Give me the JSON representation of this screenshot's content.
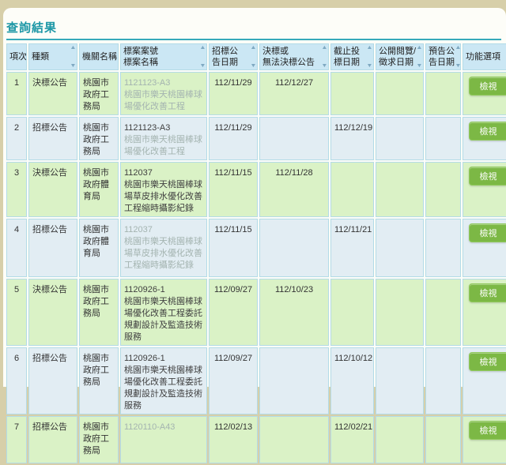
{
  "page": {
    "title": "查詢結果"
  },
  "labels": {
    "view": "檢視"
  },
  "icons": {
    "sort_asc": "▲",
    "sort_desc": "▼"
  },
  "colors": {
    "title_teal": "#1d97a6",
    "rule_teal": "#35a9ba",
    "header_bg": "#cbe7f4",
    "row_green": "#daf2c6",
    "row_blue": "#e2edf3",
    "border": "#b3dbe7",
    "button_green": "#7cb845",
    "dim_text": "#a4b4b0",
    "top_band": "#d7cfa9"
  },
  "table": {
    "headers": [
      {
        "id": "seq",
        "lines": [
          "項次"
        ],
        "sortable": false
      },
      {
        "id": "type",
        "lines": [
          "種類"
        ],
        "sortable": true
      },
      {
        "id": "agency",
        "lines": [
          "機關名稱"
        ],
        "sortable": true
      },
      {
        "id": "case",
        "lines": [
          "標案案號",
          "標案名稱"
        ],
        "sortable": true
      },
      {
        "id": "tender-date",
        "lines": [
          "招標公",
          "告日期"
        ],
        "sortable": true
      },
      {
        "id": "award-date",
        "lines": [
          "決標或",
          "無法決標公告"
        ],
        "sortable": true
      },
      {
        "id": "deadline",
        "lines": [
          "截止投",
          "標日期"
        ],
        "sortable": true
      },
      {
        "id": "review-date",
        "lines": [
          "公開閱覽/",
          "徵求日期"
        ],
        "sortable": true
      },
      {
        "id": "preannounce",
        "lines": [
          "預告公",
          "告日期"
        ],
        "sortable": true
      },
      {
        "id": "actions",
        "lines": [
          "功能選項"
        ],
        "sortable": false
      }
    ],
    "rows": [
      {
        "seq": "1",
        "type": "決標公告",
        "agency": "桃園市政府工務局",
        "case_no": "1121123-A3",
        "case_name": "桃園市樂天桃園棒球場優化改善工程",
        "tender_date": "112/11/29",
        "award_date": "112/12/27",
        "deadline_date": "",
        "review_date": "",
        "preannounce_date": "",
        "dim_no": true,
        "dim_name": true
      },
      {
        "seq": "2",
        "type": "招標公告",
        "agency": "桃園市政府工務局",
        "case_no": "1121123-A3",
        "case_name": "桃園市樂天桃園棒球場優化改善工程",
        "tender_date": "112/11/29",
        "award_date": "",
        "deadline_date": "112/12/19",
        "review_date": "",
        "preannounce_date": "",
        "dim_no": false,
        "dim_name": true
      },
      {
        "seq": "3",
        "type": "決標公告",
        "agency": "桃園市政府體育局",
        "case_no": "112037",
        "case_name": "桃園市樂天桃園棒球場草皮排水優化改善工程縮時攝影紀錄",
        "tender_date": "112/11/15",
        "award_date": "112/11/28",
        "deadline_date": "",
        "review_date": "",
        "preannounce_date": "",
        "dim_no": false,
        "dim_name": false
      },
      {
        "seq": "4",
        "type": "招標公告",
        "agency": "桃園市政府體育局",
        "case_no": "112037",
        "case_name": "桃園市樂天桃園棒球場草皮排水優化改善工程縮時攝影紀錄",
        "tender_date": "112/11/15",
        "award_date": "",
        "deadline_date": "112/11/21",
        "review_date": "",
        "preannounce_date": "",
        "dim_no": true,
        "dim_name": true
      },
      {
        "seq": "5",
        "type": "決標公告",
        "agency": "桃園市政府工務局",
        "case_no": "1120926-1",
        "case_name": "桃園市樂天桃園棒球場優化改善工程委託規劃設計及監造技術服務",
        "tender_date": "112/09/27",
        "award_date": "112/10/23",
        "deadline_date": "",
        "review_date": "",
        "preannounce_date": "",
        "dim_no": false,
        "dim_name": false
      },
      {
        "seq": "6",
        "type": "招標公告",
        "agency": "桃園市政府工務局",
        "case_no": "1120926-1",
        "case_name": "桃園市樂天桃園棒球場優化改善工程委託規劃設計及監造技術服務",
        "tender_date": "112/09/27",
        "award_date": "",
        "deadline_date": "112/10/12",
        "review_date": "",
        "preannounce_date": "",
        "dim_no": false,
        "dim_name": false
      },
      {
        "seq": "7",
        "type": "招標公告",
        "agency": "桃園市政府工務局",
        "case_no": "1120110-A43",
        "case_name": "",
        "tender_date": "112/02/13",
        "award_date": "",
        "deadline_date": "112/02/21",
        "review_date": "",
        "preannounce_date": "",
        "dim_no": true,
        "dim_name": true
      }
    ]
  }
}
